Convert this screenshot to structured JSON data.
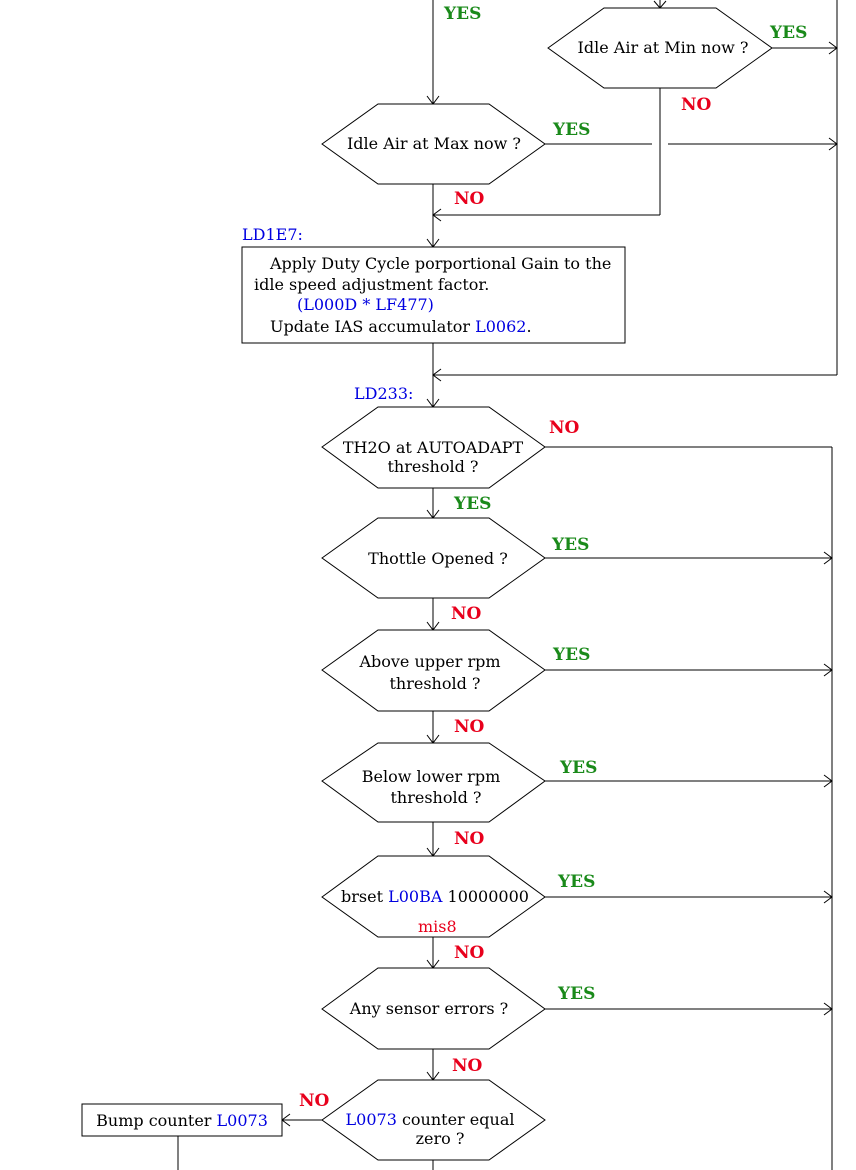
{
  "colors": {
    "yes": "#1a8a1a",
    "no": "#e8001c",
    "ref": "#0000e0",
    "text": "#000000"
  },
  "labels": {
    "yes": "YES",
    "no": "NO"
  },
  "decisions": {
    "idle_air_min": "Idle Air at Min now ?",
    "idle_air_max": "Idle Air at Max now ?",
    "th2o_line1": "TH2O at AUTOADAPT",
    "th2o_line2": "threshold ?",
    "throttle": "Thottle Opened ?",
    "upper_rpm_line1": "Above upper rpm",
    "upper_rpm_line2": "threshold ?",
    "lower_rpm_line1": "Below lower rpm",
    "lower_rpm_line2": "threshold ?",
    "brset_prefix": "brset ",
    "brset_ref": "L00BA",
    "brset_suffix": " 10000000",
    "brset_note": "mis8",
    "sensor_errors": "Any sensor errors ?",
    "counter_ref": "L0073",
    "counter_line1_suffix": " counter equal",
    "counter_line2": "zero ?"
  },
  "labels_addr": {
    "ld1e7": "LD1E7:",
    "ld233": "LD233:"
  },
  "process": {
    "line1": "Apply Duty Cycle porportional Gain to the",
    "line2": "idle speed adjustment factor.",
    "line3": "(L000D * LF477)",
    "line4_prefix": "Update IAS accumulator ",
    "line4_ref": "L0062",
    "line4_suffix": "."
  },
  "bump": {
    "prefix": "Bump counter ",
    "ref": "L0073"
  }
}
